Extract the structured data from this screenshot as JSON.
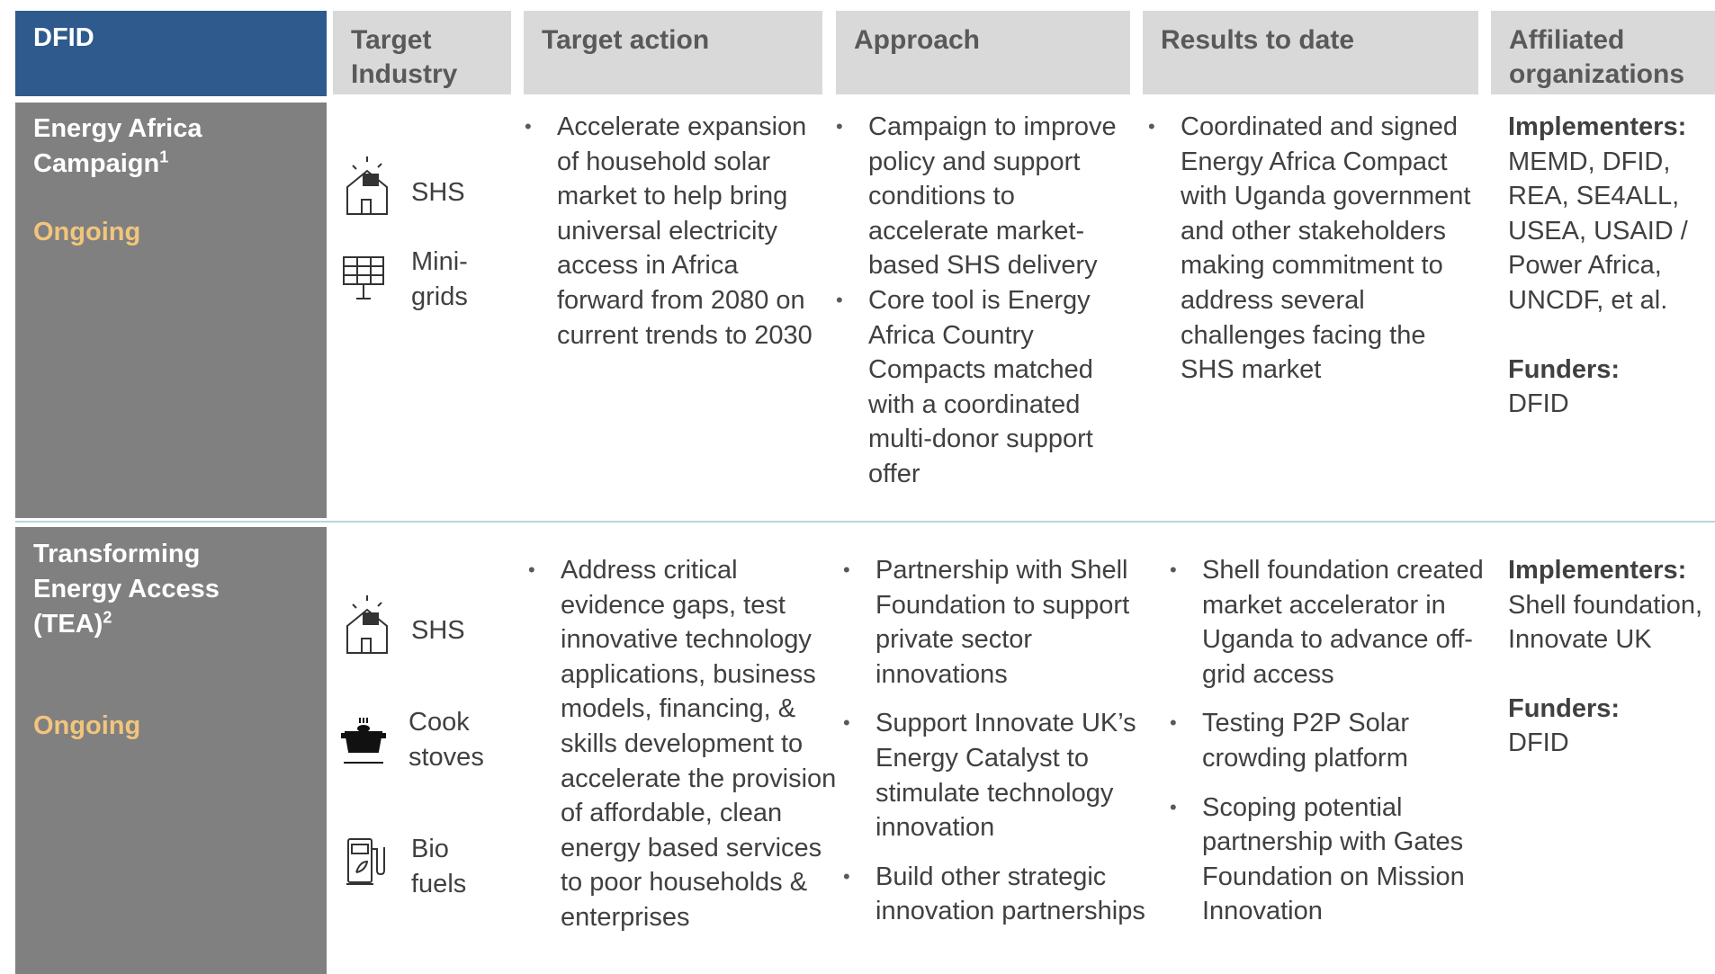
{
  "header": {
    "org": "DFID",
    "columns": [
      "Target Industry",
      "Target action",
      "Approach",
      "Results to date",
      "Affiliated organizations"
    ]
  },
  "rows": [
    {
      "program": "Energy Africa Campaign",
      "note": "1",
      "status": "Ongoing",
      "industries": [
        "SHS",
        "Mini-grids"
      ],
      "target_action": [
        "Accelerate expansion of household solar market to help bring universal electricity access in Africa forward from 2080 on current trends to 2030"
      ],
      "approach": [
        "Campaign to improve policy and support conditions to accelerate market-based SHS delivery",
        "Core tool is Energy Africa Country Compacts matched with a coordinated multi-donor support offer"
      ],
      "results": [
        "Coordinated and signed Energy Africa Compact with Uganda government and other stakeholders making commitment to address several challenges facing the SHS market"
      ],
      "implementers_label": "Implementers:",
      "implementers": "MEMD, DFID, REA, SE4ALL, USEA, USAID / Power Africa, UNCDF, et al.",
      "funders_label": "Funders:",
      "funders": "DFID"
    },
    {
      "program": "Transforming Energy Access (TEA)",
      "note": "2",
      "status": "Ongoing",
      "industries": [
        "SHS",
        "Cook stoves",
        "Bio fuels"
      ],
      "target_action": [
        "Address critical evidence gaps, test innovative technology applications, business models, financing, & skills development to accelerate the provision of affordable, clean energy based services to poor households & enterprises"
      ],
      "approach": [
        "Partnership with Shell Foundation to support private sector innovations",
        "Support Innovate UK’s Energy Catalyst to stimulate technology innovation",
        "Build other strategic innovation partnerships"
      ],
      "results": [
        "Shell foundation created market accelerator in Uganda to advance off-grid access",
        "Testing P2P Solar crowding platform",
        "Scoping potential partnership with Gates Foundation on Mission Innovation"
      ],
      "implementers_label": "Implementers:",
      "implementers": "Shell foundation, Innovate UK",
      "funders_label": "Funders:",
      "funders": "DFID"
    }
  ]
}
